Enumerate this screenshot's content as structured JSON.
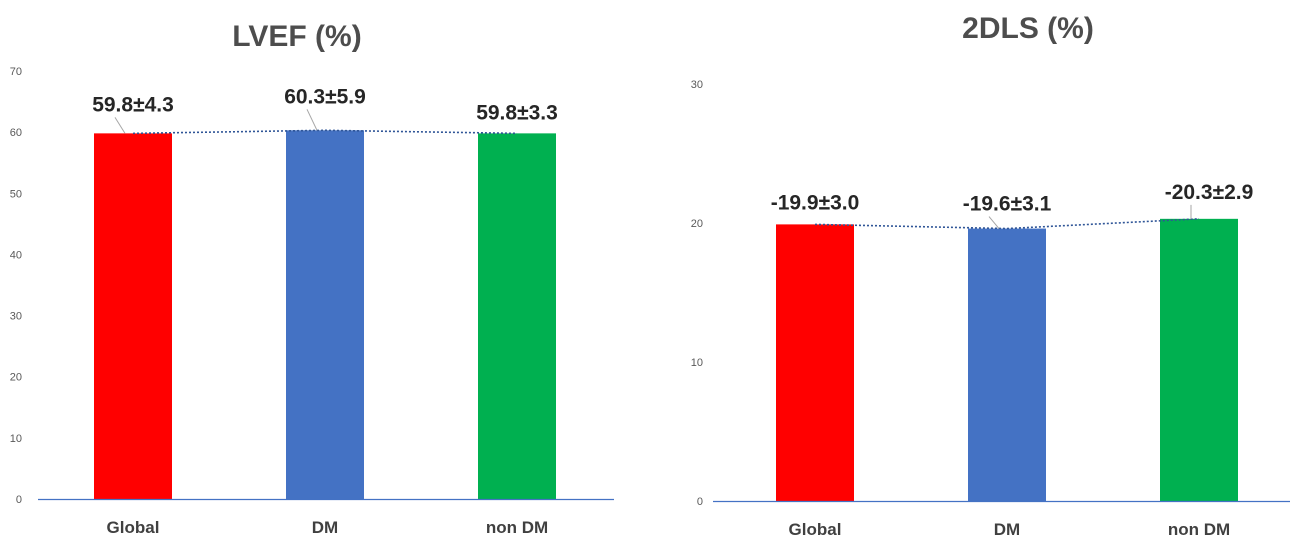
{
  "chart_data": [
    {
      "type": "bar",
      "title": "LVEF (%)",
      "categories": [
        "Global",
        "DM",
        "non DM"
      ],
      "values": [
        59.8,
        60.3,
        59.8
      ],
      "data_labels": [
        "59.8±4.3",
        "60.3±5.9",
        "59.8±3.3"
      ],
      "yticks": [
        "0",
        "10",
        "20",
        "30",
        "40",
        "50",
        "60",
        "70"
      ],
      "ylim": [
        0,
        70
      ],
      "colors": [
        "#ff0000",
        "#4472c4",
        "#00b050"
      ],
      "trendline": "dotted",
      "grid": false
    },
    {
      "type": "bar",
      "title": "2DLS (%)",
      "categories": [
        "Global",
        "DM",
        "non DM"
      ],
      "values": [
        19.9,
        19.6,
        20.3
      ],
      "data_labels": [
        "-19.9±3.0",
        "-19.6±3.1",
        "-20.3±2.9"
      ],
      "yticks": [
        "0",
        "10",
        "20",
        "30"
      ],
      "ylim": [
        0,
        30
      ],
      "colors": [
        "#ff0000",
        "#4472c4",
        "#00b050"
      ],
      "trendline": "dotted",
      "grid": false
    }
  ]
}
